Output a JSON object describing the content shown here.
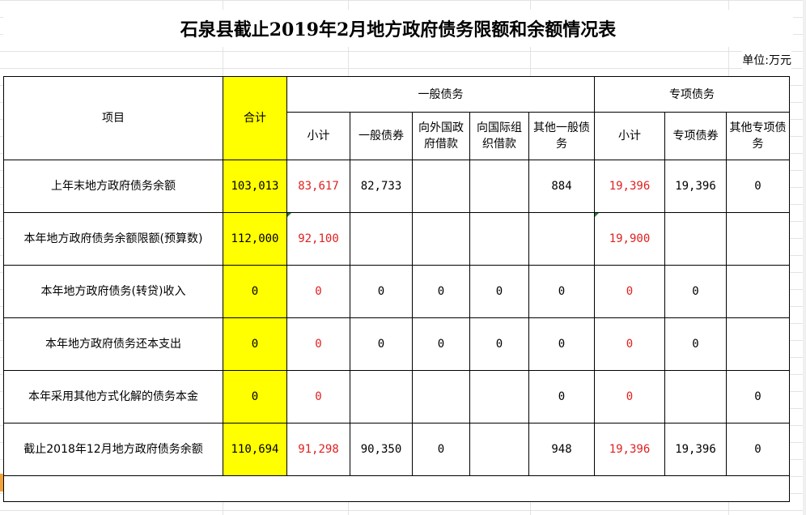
{
  "title": "石泉县截止2019年2月地方政府债务限额和余额情况表",
  "unit": "单位:万元",
  "headers": {
    "item": "项目",
    "total": "合计",
    "general_group": "一般债务",
    "special_group": "专项债务",
    "sub": [
      "小计",
      "一般债券",
      "向外国政府借款",
      "向国际组织借款",
      "其他一般债务",
      "小计",
      "专项债券",
      "其他专项债务"
    ]
  },
  "rows": [
    {
      "label": "上年末地方政府债务余额",
      "total": "103,013",
      "g_sub": "83,617",
      "g_bond": "82,733",
      "g_foreign": "",
      "g_intl": "",
      "g_other": "884",
      "s_sub": "19,396",
      "s_bond": "19,396",
      "s_other": "0"
    },
    {
      "label": "本年地方政府债务余额限额(预算数)",
      "total": "112,000",
      "g_sub": "92,100",
      "g_bond": "",
      "g_foreign": "",
      "g_intl": "",
      "g_other": "",
      "s_sub": "19,900",
      "s_bond": "",
      "s_other": ""
    },
    {
      "label": "本年地方政府债务(转贷)收入",
      "total": "0",
      "g_sub": "0",
      "g_bond": "0",
      "g_foreign": "0",
      "g_intl": "0",
      "g_other": "0",
      "s_sub": "0",
      "s_bond": "0",
      "s_other": ""
    },
    {
      "label": "本年地方政府债务还本支出",
      "total": "0",
      "g_sub": "0",
      "g_bond": "0",
      "g_foreign": "0",
      "g_intl": "0",
      "g_other": "0",
      "s_sub": "0",
      "s_bond": "0",
      "s_other": ""
    },
    {
      "label": "本年采用其他方式化解的债务本金",
      "total": "0",
      "g_sub": "0",
      "g_bond": "",
      "g_foreign": "",
      "g_intl": "",
      "g_other": "0",
      "s_sub": "0",
      "s_bond": "",
      "s_other": "0"
    },
    {
      "label": "截止2018年12月地方政府债务余额",
      "total": "110,694",
      "g_sub": "91,298",
      "g_bond": "90,350",
      "g_foreign": "0",
      "g_intl": "",
      "g_other": "948",
      "s_sub": "19,396",
      "s_bond": "19,396",
      "s_other": "0"
    }
  ],
  "colors": {
    "highlight": "#ffff00",
    "red_text": "#e02020",
    "grid": "#e3e3e3"
  }
}
